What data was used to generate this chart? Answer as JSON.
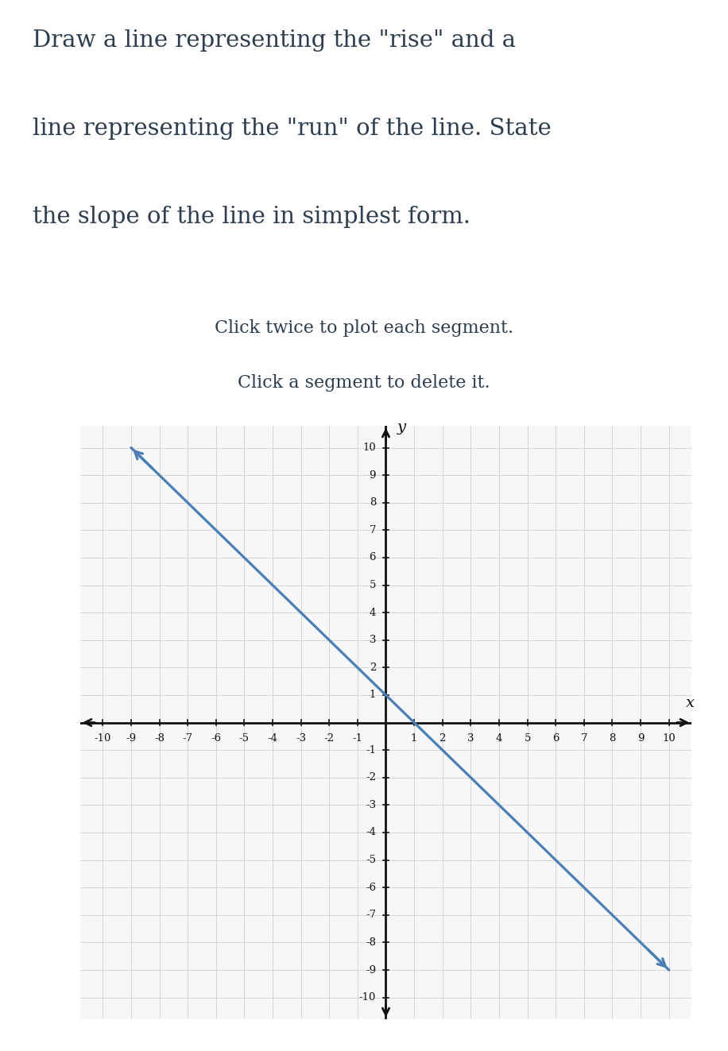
{
  "title_line1": "Draw a line representing the \"rise\" and a",
  "title_line2": "line representing the \"run\" of the line. State",
  "title_line3": "the slope of the line in simplest form.",
  "subtitle_line1": "Click twice to plot each segment.",
  "subtitle_line2": "Click a segment to delete it.",
  "title_color": "#2c3e50",
  "subtitle_color": "#2c3e50",
  "title_fontsize": 21,
  "subtitle_fontsize": 16,
  "axis_color": "#111111",
  "grid_color": "#d0d0d0",
  "line_color": "#4a7fb5",
  "line_x1": -9,
  "line_y1": 10,
  "line_x2": 10,
  "line_y2": -9,
  "xlim": [
    -10.8,
    10.8
  ],
  "ylim": [
    -10.8,
    10.8
  ],
  "xticks": [
    -10,
    -9,
    -8,
    -7,
    -6,
    -5,
    -4,
    -3,
    -2,
    -1,
    1,
    2,
    3,
    4,
    5,
    6,
    7,
    8,
    9,
    10
  ],
  "yticks": [
    -10,
    -9,
    -8,
    -7,
    -6,
    -5,
    -4,
    -3,
    -2,
    -1,
    1,
    2,
    3,
    4,
    5,
    6,
    7,
    8,
    9,
    10
  ],
  "axis_label_x": "x",
  "axis_label_y": "y",
  "background_color": "#ffffff",
  "plot_bg_color": "#f7f7f7"
}
